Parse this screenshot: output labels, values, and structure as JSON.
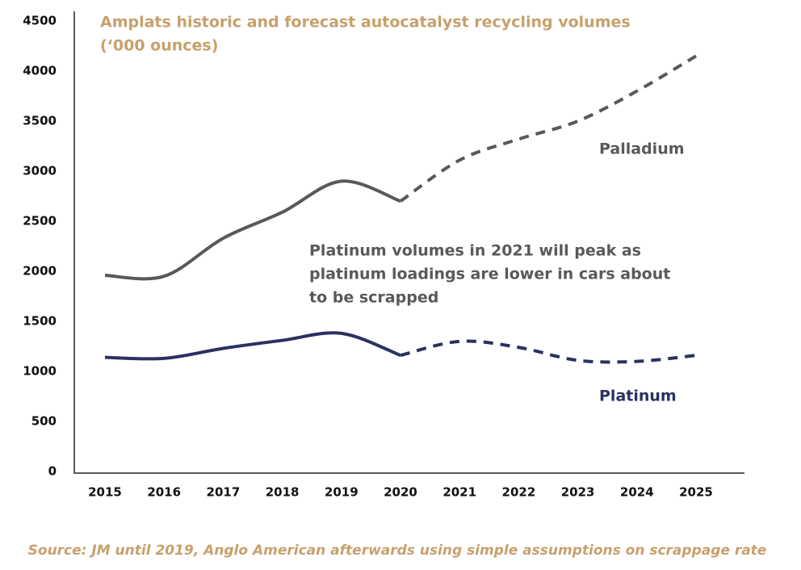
{
  "chart_data": {
    "type": "line",
    "title": "Amplats historic and forecast autocatalyst recycling volumes",
    "subtitle": "(‘000 ounces)",
    "categories": [
      "2015",
      "2016",
      "2017",
      "2018",
      "2019",
      "2020",
      "2021",
      "2022",
      "2023",
      "2024",
      "2025"
    ],
    "series": [
      {
        "name": "Palladium",
        "color": "#58595b",
        "dashed": false,
        "values": [
          1960,
          1950,
          2330,
          2590,
          2900,
          2700,
          null,
          null,
          null,
          null,
          null
        ]
      },
      {
        "color": "#58595b",
        "dashed": true,
        "values": [
          null,
          null,
          null,
          null,
          null,
          2700,
          3110,
          3320,
          3500,
          3800,
          4150
        ]
      },
      {
        "name": "Platinum",
        "color": "#2b3160",
        "dashed": false,
        "values": [
          1140,
          1130,
          1230,
          1310,
          1380,
          1160,
          null,
          null,
          null,
          null,
          null
        ]
      },
      {
        "color": "#2b3160",
        "dashed": true,
        "values": [
          null,
          null,
          null,
          null,
          null,
          1160,
          1300,
          1240,
          1110,
          1100,
          1160
        ]
      }
    ],
    "ylim": [
      0,
      4500
    ],
    "yticks": [
      0,
      500,
      1000,
      1500,
      2000,
      2500,
      3000,
      3500,
      4000,
      4500
    ],
    "annotation": [
      "Platinum volumes in 2021 will peak as",
      "platinum loadings are lower in cars about",
      "to be scrapped"
    ],
    "source": "Source: JM until 2019, Anglo American afterwards using simple assumptions on scrappage rate"
  }
}
